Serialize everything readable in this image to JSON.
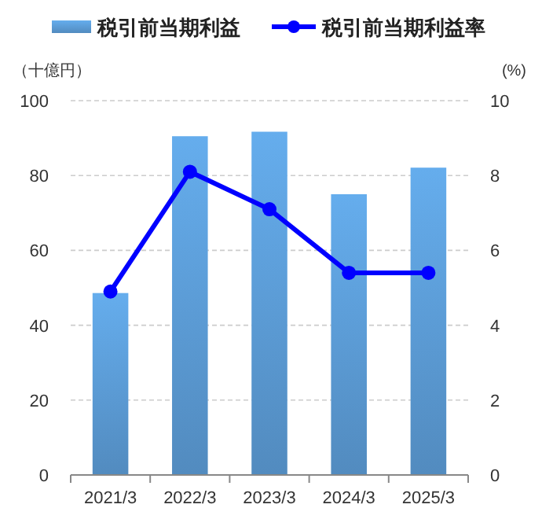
{
  "chart_data": {
    "type": "bar",
    "categories": [
      "2021/3",
      "2022/3",
      "2023/3",
      "2024/3",
      "2025/3"
    ],
    "series": [
      {
        "name": "税引前当期利益",
        "color": "#5b9bd5",
        "values": [
          48.6,
          90.5,
          91.7,
          75.0,
          82.1
        ]
      },
      {
        "name": "税引前当期利益率",
        "type": "line",
        "axis": "y2",
        "color": "#0000ff",
        "values": [
          4.9,
          8.1,
          7.1,
          5.4,
          5.4
        ]
      }
    ],
    "ylabel": "（十億円）",
    "y2label": "(%)",
    "ylim": [
      0,
      100
    ],
    "yticks": [
      0,
      20,
      40,
      60,
      80,
      100
    ],
    "y2lim": [
      0,
      10
    ],
    "y2ticks": [
      0,
      2,
      4,
      6,
      8,
      10
    ],
    "grid": "y",
    "legend": "top",
    "marker": "circle",
    "line_style": "solid"
  }
}
